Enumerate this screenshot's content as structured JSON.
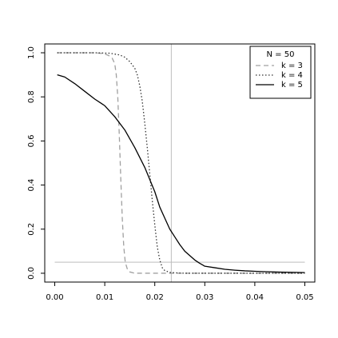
{
  "chart_data": {
    "type": "line",
    "title": "",
    "xlabel": "",
    "ylabel": "",
    "xlim": [
      0.0,
      0.05
    ],
    "ylim": [
      0.0,
      1.0
    ],
    "x_ticks": [
      {
        "value": 0.0,
        "label": "0.00"
      },
      {
        "value": 0.01,
        "label": "0.01"
      },
      {
        "value": 0.02,
        "label": "0.02"
      },
      {
        "value": 0.03,
        "label": "0.03"
      },
      {
        "value": 0.04,
        "label": "0.04"
      },
      {
        "value": 0.05,
        "label": "0.05"
      }
    ],
    "y_ticks": [
      {
        "value": 0.0,
        "label": "0.0"
      },
      {
        "value": 0.2,
        "label": "0.2"
      },
      {
        "value": 0.4,
        "label": "0.4"
      },
      {
        "value": 0.6,
        "label": "0.6"
      },
      {
        "value": 0.8,
        "label": "0.8"
      },
      {
        "value": 1.0,
        "label": "1.0"
      }
    ],
    "grid": false,
    "legend": {
      "placement": "top-right",
      "title": "N =  50",
      "entries": [
        {
          "label": "k =  3",
          "series": 0
        },
        {
          "label": "k =  4",
          "series": 1
        },
        {
          "label": "k =  5",
          "series": 2
        }
      ]
    },
    "reference_lines": [
      {
        "orientation": "vertical",
        "value": 0.0233,
        "color": "#bdbdbd"
      },
      {
        "orientation": "horizontal",
        "value": 0.05,
        "color": "#bdbdbd"
      }
    ],
    "series": [
      {
        "name": "k =  3",
        "color": "#a0a0a0",
        "line_style": "dashed",
        "x": [
          0.0005,
          0.002,
          0.004,
          0.006,
          0.008,
          0.009,
          0.01,
          0.0105,
          0.011,
          0.0115,
          0.012,
          0.0123,
          0.0126,
          0.0129,
          0.0132,
          0.0135,
          0.0138,
          0.0141,
          0.0145,
          0.015,
          0.016,
          0.018,
          0.02,
          0.025,
          0.03,
          0.04,
          0.05
        ],
        "y": [
          1.0,
          1.0,
          1.0,
          1.0,
          1.0,
          0.998,
          0.995,
          0.99,
          0.985,
          0.975,
          0.95,
          0.9,
          0.8,
          0.63,
          0.43,
          0.25,
          0.12,
          0.05,
          0.02,
          0.006,
          0.0,
          0.0,
          0.0,
          0.0,
          0.0,
          0.0,
          0.0
        ]
      },
      {
        "name": "k =  4",
        "color": "#333333",
        "line_style": "dotted",
        "x": [
          0.0005,
          0.004,
          0.008,
          0.011,
          0.013,
          0.014,
          0.015,
          0.016,
          0.0165,
          0.017,
          0.0175,
          0.018,
          0.0185,
          0.019,
          0.0195,
          0.02,
          0.0205,
          0.021,
          0.0215,
          0.022,
          0.023,
          0.024,
          0.026,
          0.03,
          0.04,
          0.05
        ],
        "y": [
          1.0,
          1.0,
          1.0,
          0.998,
          0.99,
          0.98,
          0.96,
          0.93,
          0.9,
          0.85,
          0.78,
          0.68,
          0.57,
          0.45,
          0.33,
          0.22,
          0.12,
          0.06,
          0.025,
          0.012,
          0.004,
          0.002,
          0.0,
          0.0,
          0.0,
          0.0
        ]
      },
      {
        "name": "k =  5",
        "color": "#000000",
        "line_style": "solid",
        "x": [
          0.0005,
          0.002,
          0.004,
          0.006,
          0.008,
          0.01,
          0.012,
          0.014,
          0.016,
          0.018,
          0.02,
          0.021,
          0.022,
          0.023,
          0.024,
          0.025,
          0.026,
          0.027,
          0.028,
          0.029,
          0.03,
          0.032,
          0.034,
          0.036,
          0.038,
          0.04,
          0.042,
          0.045,
          0.048,
          0.05
        ],
        "y": [
          0.9,
          0.89,
          0.86,
          0.825,
          0.79,
          0.76,
          0.71,
          0.65,
          0.57,
          0.48,
          0.37,
          0.3,
          0.25,
          0.2,
          0.165,
          0.13,
          0.1,
          0.08,
          0.06,
          0.045,
          0.032,
          0.025,
          0.018,
          0.014,
          0.011,
          0.009,
          0.007,
          0.005,
          0.004,
          0.003
        ]
      }
    ]
  }
}
